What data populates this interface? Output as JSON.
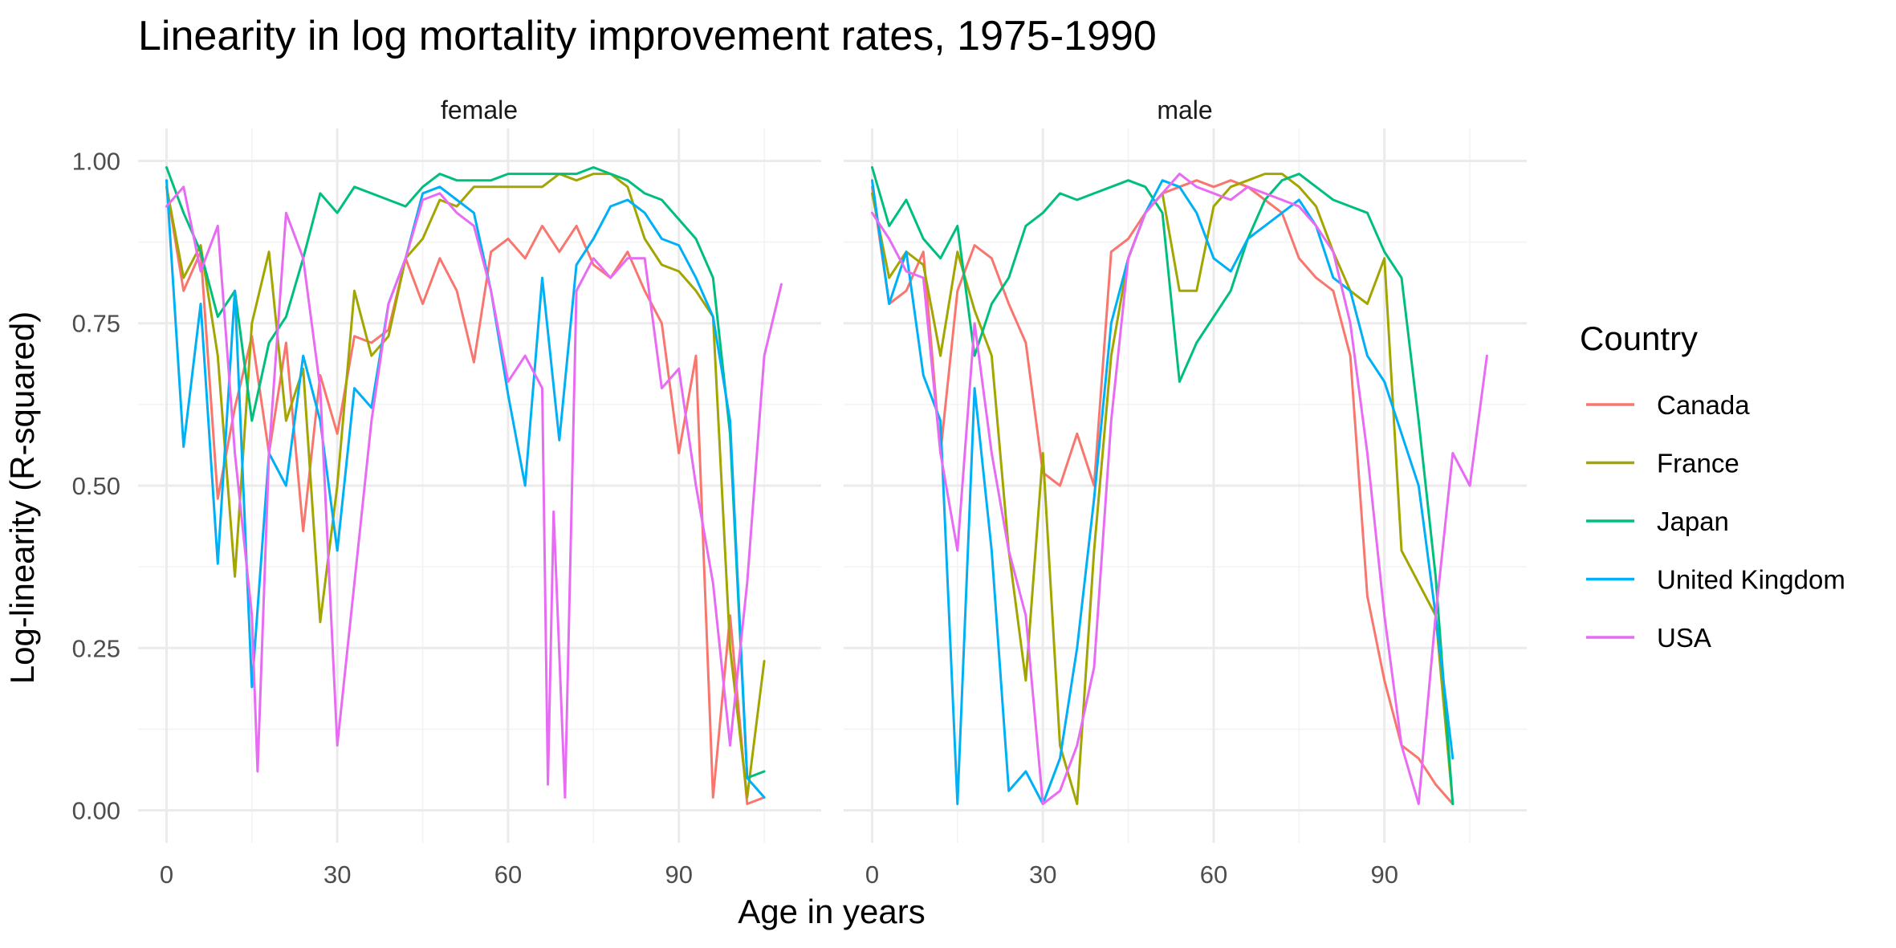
{
  "chart_data": {
    "type": "line",
    "title": "Linearity in log mortality improvement rates, 1975-1990",
    "xlabel": "Age in years",
    "ylabel": "Log-linearity (R-squared)",
    "xlim": [
      -5,
      115
    ],
    "ylim": [
      -0.05,
      1.05
    ],
    "x_ticks": [
      0,
      30,
      60,
      90
    ],
    "y_ticks": [
      0,
      0.25,
      0.5,
      0.75,
      1.0
    ],
    "x_tick_labels": [
      "0",
      "30",
      "60",
      "90"
    ],
    "y_tick_labels": [
      "0.00",
      "0.25",
      "0.50",
      "0.75",
      "1.00"
    ],
    "grid": true,
    "legend": {
      "title": "Country",
      "position": "right",
      "entries": [
        {
          "name": "Canada",
          "color": "#F8766D"
        },
        {
          "name": "France",
          "color": "#A3A500"
        },
        {
          "name": "Japan",
          "color": "#00BF7D"
        },
        {
          "name": "United Kingdom",
          "color": "#00B0F6"
        },
        {
          "name": "USA",
          "color": "#E76BF3"
        }
      ]
    },
    "panels": [
      {
        "label": "female",
        "series": [
          {
            "name": "Canada",
            "x": [
              0,
              3,
              6,
              9,
              12,
              15,
              18,
              21,
              24,
              27,
              30,
              33,
              36,
              39,
              42,
              45,
              48,
              51,
              54,
              57,
              60,
              63,
              66,
              69,
              72,
              75,
              78,
              81,
              84,
              87,
              90,
              93,
              96,
              99,
              102,
              105
            ],
            "y": [
              0.96,
              0.8,
              0.86,
              0.48,
              0.62,
              0.73,
              0.55,
              0.72,
              0.43,
              0.67,
              0.58,
              0.73,
              0.72,
              0.74,
              0.85,
              0.78,
              0.85,
              0.8,
              0.69,
              0.86,
              0.88,
              0.85,
              0.9,
              0.86,
              0.9,
              0.84,
              0.82,
              0.86,
              0.8,
              0.75,
              0.55,
              0.7,
              0.02,
              0.3,
              0.01,
              0.02
            ]
          },
          {
            "name": "France",
            "x": [
              0,
              3,
              6,
              9,
              12,
              15,
              18,
              21,
              24,
              27,
              30,
              33,
              36,
              39,
              42,
              45,
              48,
              51,
              54,
              57,
              60,
              63,
              66,
              69,
              72,
              75,
              78,
              81,
              84,
              87,
              90,
              93,
              96,
              99,
              102,
              105
            ],
            "y": [
              0.96,
              0.82,
              0.87,
              0.7,
              0.36,
              0.75,
              0.86,
              0.6,
              0.68,
              0.29,
              0.5,
              0.8,
              0.7,
              0.73,
              0.85,
              0.88,
              0.94,
              0.93,
              0.96,
              0.96,
              0.96,
              0.96,
              0.96,
              0.98,
              0.97,
              0.98,
              0.98,
              0.96,
              0.88,
              0.84,
              0.83,
              0.8,
              0.76,
              0.25,
              0.02,
              0.23
            ]
          },
          {
            "name": "Japan",
            "x": [
              0,
              3,
              6,
              9,
              12,
              15,
              18,
              21,
              24,
              27,
              30,
              33,
              36,
              39,
              42,
              45,
              48,
              51,
              54,
              57,
              60,
              63,
              66,
              69,
              72,
              75,
              78,
              81,
              84,
              87,
              90,
              93,
              96,
              99,
              102,
              105
            ],
            "y": [
              0.99,
              0.92,
              0.86,
              0.76,
              0.8,
              0.6,
              0.72,
              0.76,
              0.85,
              0.95,
              0.92,
              0.96,
              0.95,
              0.94,
              0.93,
              0.96,
              0.98,
              0.97,
              0.97,
              0.97,
              0.98,
              0.98,
              0.98,
              0.98,
              0.98,
              0.99,
              0.98,
              0.97,
              0.95,
              0.94,
              0.91,
              0.88,
              0.82,
              0.58,
              0.05,
              0.06
            ]
          },
          {
            "name": "United Kingdom",
            "x": [
              0,
              3,
              6,
              9,
              12,
              15,
              18,
              21,
              24,
              27,
              30,
              33,
              36,
              39,
              42,
              45,
              48,
              51,
              54,
              57,
              60,
              63,
              66,
              69,
              72,
              75,
              78,
              81,
              84,
              87,
              90,
              93,
              96,
              99,
              102,
              105
            ],
            "y": [
              0.97,
              0.56,
              0.78,
              0.38,
              0.8,
              0.19,
              0.55,
              0.5,
              0.7,
              0.6,
              0.4,
              0.65,
              0.62,
              0.78,
              0.85,
              0.95,
              0.96,
              0.94,
              0.92,
              0.8,
              0.64,
              0.5,
              0.82,
              0.57,
              0.84,
              0.88,
              0.93,
              0.94,
              0.92,
              0.88,
              0.87,
              0.82,
              0.76,
              0.6,
              0.05,
              0.02
            ]
          },
          {
            "name": "USA",
            "x": [
              0,
              3,
              6,
              9,
              12,
              15,
              16,
              18,
              21,
              24,
              27,
              30,
              33,
              36,
              39,
              42,
              45,
              48,
              51,
              54,
              57,
              60,
              63,
              66,
              67,
              68,
              70,
              72,
              75,
              78,
              81,
              84,
              87,
              90,
              93,
              96,
              99,
              102,
              105,
              108
            ],
            "y": [
              0.93,
              0.96,
              0.83,
              0.9,
              0.55,
              0.3,
              0.06,
              0.55,
              0.92,
              0.85,
              0.65,
              0.1,
              0.35,
              0.6,
              0.78,
              0.85,
              0.94,
              0.95,
              0.92,
              0.9,
              0.8,
              0.66,
              0.7,
              0.65,
              0.04,
              0.46,
              0.02,
              0.8,
              0.85,
              0.82,
              0.85,
              0.85,
              0.65,
              0.68,
              0.5,
              0.35,
              0.1,
              0.35,
              0.7,
              0.81
            ]
          }
        ]
      },
      {
        "label": "male",
        "series": [
          {
            "name": "Canada",
            "x": [
              0,
              3,
              6,
              9,
              12,
              15,
              18,
              21,
              24,
              27,
              30,
              33,
              36,
              39,
              42,
              45,
              48,
              51,
              54,
              57,
              60,
              63,
              66,
              69,
              72,
              75,
              78,
              81,
              84,
              87,
              90,
              93,
              96,
              99,
              102
            ],
            "y": [
              0.96,
              0.78,
              0.8,
              0.86,
              0.55,
              0.8,
              0.87,
              0.85,
              0.78,
              0.72,
              0.52,
              0.5,
              0.58,
              0.5,
              0.86,
              0.88,
              0.92,
              0.95,
              0.96,
              0.97,
              0.96,
              0.97,
              0.96,
              0.94,
              0.92,
              0.85,
              0.82,
              0.8,
              0.7,
              0.33,
              0.2,
              0.1,
              0.08,
              0.04,
              0.01
            ]
          },
          {
            "name": "France",
            "x": [
              0,
              3,
              6,
              9,
              12,
              15,
              18,
              21,
              24,
              27,
              30,
              33,
              36,
              39,
              42,
              45,
              48,
              51,
              54,
              57,
              60,
              63,
              66,
              69,
              72,
              75,
              78,
              81,
              84,
              87,
              90,
              93,
              96,
              99,
              102
            ],
            "y": [
              0.95,
              0.82,
              0.86,
              0.84,
              0.7,
              0.86,
              0.77,
              0.7,
              0.4,
              0.2,
              0.55,
              0.1,
              0.01,
              0.4,
              0.7,
              0.85,
              0.92,
              0.95,
              0.8,
              0.8,
              0.93,
              0.96,
              0.97,
              0.98,
              0.98,
              0.96,
              0.93,
              0.86,
              0.8,
              0.78,
              0.85,
              0.4,
              0.35,
              0.3,
              0.01
            ]
          },
          {
            "name": "Japan",
            "x": [
              0,
              3,
              6,
              9,
              12,
              15,
              18,
              21,
              24,
              27,
              30,
              33,
              36,
              39,
              42,
              45,
              48,
              51,
              54,
              57,
              60,
              63,
              66,
              69,
              72,
              75,
              78,
              81,
              84,
              87,
              90,
              93,
              96,
              99,
              102
            ],
            "y": [
              0.99,
              0.9,
              0.94,
              0.88,
              0.85,
              0.9,
              0.7,
              0.78,
              0.82,
              0.9,
              0.92,
              0.95,
              0.94,
              0.95,
              0.96,
              0.97,
              0.96,
              0.92,
              0.66,
              0.72,
              0.76,
              0.8,
              0.88,
              0.94,
              0.97,
              0.98,
              0.96,
              0.94,
              0.93,
              0.92,
              0.86,
              0.82,
              0.6,
              0.36,
              0.01
            ]
          },
          {
            "name": "United Kingdom",
            "x": [
              0,
              3,
              6,
              9,
              12,
              15,
              18,
              21,
              24,
              27,
              30,
              33,
              36,
              39,
              42,
              45,
              48,
              51,
              54,
              57,
              60,
              63,
              66,
              69,
              72,
              75,
              78,
              81,
              84,
              87,
              90,
              93,
              96,
              99,
              102
            ],
            "y": [
              0.97,
              0.78,
              0.86,
              0.67,
              0.6,
              0.01,
              0.65,
              0.4,
              0.03,
              0.06,
              0.01,
              0.08,
              0.25,
              0.48,
              0.75,
              0.85,
              0.92,
              0.97,
              0.96,
              0.92,
              0.85,
              0.83,
              0.88,
              0.9,
              0.92,
              0.94,
              0.9,
              0.82,
              0.8,
              0.7,
              0.66,
              0.58,
              0.5,
              0.3,
              0.08
            ]
          },
          {
            "name": "USA",
            "x": [
              0,
              3,
              6,
              9,
              12,
              15,
              18,
              21,
              24,
              27,
              30,
              33,
              36,
              39,
              42,
              45,
              48,
              51,
              54,
              57,
              60,
              63,
              66,
              69,
              72,
              75,
              78,
              81,
              84,
              87,
              90,
              93,
              96,
              99,
              102,
              105,
              108
            ],
            "y": [
              0.92,
              0.88,
              0.83,
              0.82,
              0.55,
              0.4,
              0.75,
              0.55,
              0.4,
              0.3,
              0.01,
              0.03,
              0.1,
              0.22,
              0.6,
              0.85,
              0.92,
              0.95,
              0.98,
              0.96,
              0.95,
              0.94,
              0.96,
              0.95,
              0.94,
              0.93,
              0.9,
              0.86,
              0.75,
              0.55,
              0.3,
              0.1,
              0.01,
              0.3,
              0.55,
              0.5,
              0.7
            ]
          }
        ]
      }
    ]
  }
}
